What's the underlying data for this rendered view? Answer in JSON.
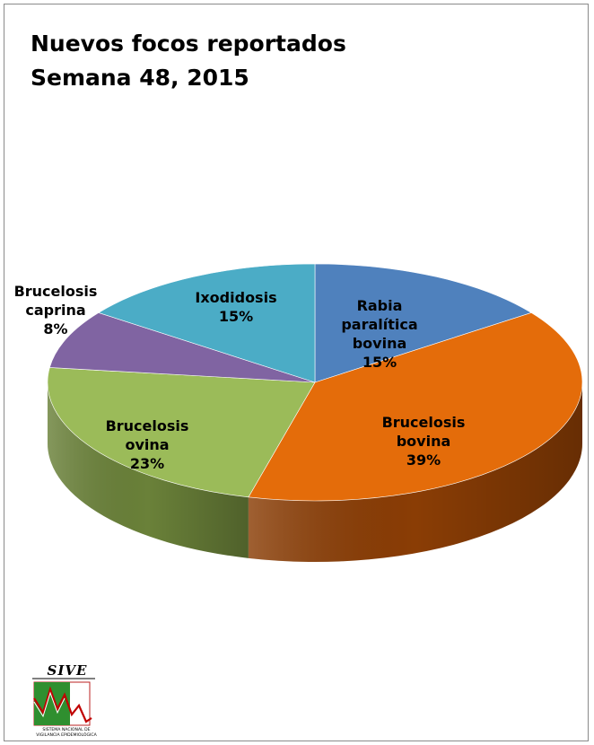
{
  "chart_data": {
    "type": "pie",
    "title": [
      "Nuevos focos reportados",
      "Semana 48, 2015"
    ],
    "slices": [
      {
        "label": [
          "Rabia",
          "paralítica",
          "bovina"
        ],
        "value": 15,
        "pct_label": "15%",
        "color": "#4F81BD",
        "side": "#36588A"
      },
      {
        "label": [
          "Brucelosis",
          "bovina"
        ],
        "value": 39,
        "pct_label": "39%",
        "color": "#E46C0A",
        "side": "#8A3D05"
      },
      {
        "label": [
          "Brucelosis",
          "ovina"
        ],
        "value": 23,
        "pct_label": "23%",
        "color": "#9BBB59",
        "side": "#6A8139"
      },
      {
        "label": [
          "Brucelosis",
          "caprina"
        ],
        "value": 8,
        "pct_label": "8%",
        "color": "#8064A2",
        "side": "#54416C"
      },
      {
        "label": [
          "Ixodidosis"
        ],
        "value": 15,
        "pct_label": "15%",
        "color": "#4BACC6",
        "side": "#2E7A8E"
      }
    ],
    "legend": "none",
    "style": "3d-pie"
  },
  "logo": {
    "title": "SIVE",
    "subtitle": [
      "SISTEMA NACIONAL DE",
      "VIGILANCIA EPIDEMIOLÓGICA"
    ]
  }
}
